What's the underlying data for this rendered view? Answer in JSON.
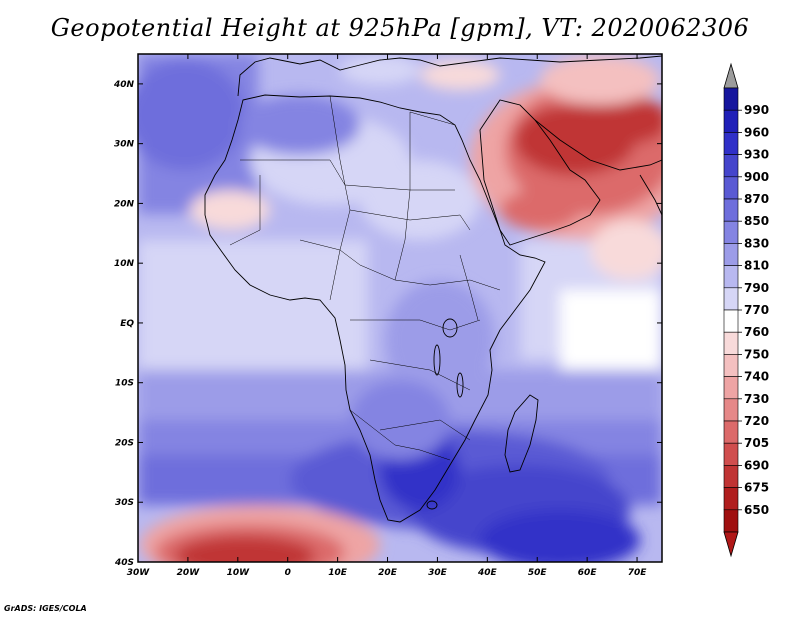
{
  "title": "Geopotential Height at 925hPa [gpm], VT: 2020062306",
  "credit": "GrADS: IGES/COLA",
  "map": {
    "lon_range": [
      -30,
      75
    ],
    "lat_range": [
      -40,
      45
    ],
    "lon_ticks": [
      "30W",
      "20W",
      "10W",
      "0",
      "10E",
      "20E",
      "30E",
      "40E",
      "50E",
      "60E",
      "70E"
    ],
    "lat_ticks": [
      "40S",
      "30S",
      "20S",
      "10S",
      "EQ",
      "10N",
      "20N",
      "30N",
      "40N"
    ]
  },
  "colorbar": {
    "levels": [
      "990",
      "960",
      "930",
      "900",
      "870",
      "850",
      "830",
      "810",
      "790",
      "770",
      "760",
      "750",
      "740",
      "730",
      "720",
      "705",
      "690",
      "675",
      "650"
    ],
    "colors": [
      "#16169e",
      "#2020b8",
      "#3030c8",
      "#4545cc",
      "#5a5ad4",
      "#6e6edc",
      "#8484e2",
      "#9c9ce8",
      "#b8b8f0",
      "#d6d6f6",
      "#ffffff",
      "#f8dada",
      "#f4c0c0",
      "#eea4a4",
      "#e68888",
      "#dc6a6a",
      "#d04e4e",
      "#c03434",
      "#b01e1e",
      "#a01010"
    ],
    "over_color": "#9c9c9c",
    "under_color": "#b01818"
  }
}
